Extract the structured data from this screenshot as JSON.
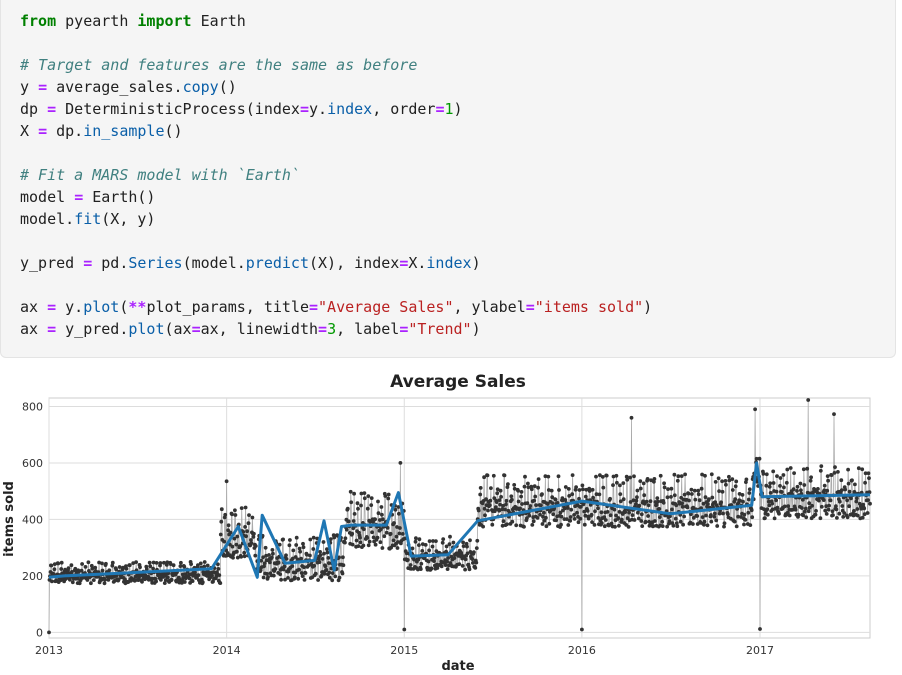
{
  "code_cell": {
    "lines": [
      [
        [
          "kw",
          "from"
        ],
        [
          "t",
          " pyearth "
        ],
        [
          "kw",
          "import"
        ],
        [
          "t",
          " Earth"
        ]
      ],
      [],
      [
        [
          "cm",
          "# Target and features are the same as before"
        ]
      ],
      [
        [
          "t",
          "y "
        ],
        [
          "op",
          "="
        ],
        [
          "t",
          " average_sales."
        ],
        [
          "fn",
          "copy"
        ],
        [
          "t",
          "()"
        ]
      ],
      [
        [
          "t",
          "dp "
        ],
        [
          "op",
          "="
        ],
        [
          "t",
          " DeterministicProcess(index"
        ],
        [
          "op",
          "="
        ],
        [
          "t",
          "y."
        ],
        [
          "fn",
          "index"
        ],
        [
          "t",
          ", order"
        ],
        [
          "op",
          "="
        ],
        [
          "num",
          "1"
        ],
        [
          "t",
          ")"
        ]
      ],
      [
        [
          "t",
          "X "
        ],
        [
          "op",
          "="
        ],
        [
          "t",
          " dp."
        ],
        [
          "fn",
          "in_sample"
        ],
        [
          "t",
          "()"
        ]
      ],
      [],
      [
        [
          "cm",
          "# Fit a MARS model with `Earth`"
        ]
      ],
      [
        [
          "t",
          "model "
        ],
        [
          "op",
          "="
        ],
        [
          "t",
          " Earth()"
        ]
      ],
      [
        [
          "t",
          "model."
        ],
        [
          "fn",
          "fit"
        ],
        [
          "t",
          "(X, y)"
        ]
      ],
      [],
      [
        [
          "t",
          "y_pred "
        ],
        [
          "op",
          "="
        ],
        [
          "t",
          " pd."
        ],
        [
          "fn",
          "Series"
        ],
        [
          "t",
          "(model."
        ],
        [
          "fn",
          "predict"
        ],
        [
          "t",
          "(X), index"
        ],
        [
          "op",
          "="
        ],
        [
          "t",
          "X."
        ],
        [
          "fn",
          "index"
        ],
        [
          "t",
          ")"
        ]
      ],
      [],
      [
        [
          "t",
          "ax "
        ],
        [
          "op",
          "="
        ],
        [
          "t",
          " y."
        ],
        [
          "fn",
          "plot"
        ],
        [
          "t",
          "("
        ],
        [
          "op",
          "**"
        ],
        [
          "t",
          "plot_params, title"
        ],
        [
          "op",
          "="
        ],
        [
          "str",
          "\"Average Sales\""
        ],
        [
          "t",
          ", ylabel"
        ],
        [
          "op",
          "="
        ],
        [
          "str",
          "\"items sold\""
        ],
        [
          "t",
          ")"
        ]
      ],
      [
        [
          "t",
          "ax "
        ],
        [
          "op",
          "="
        ],
        [
          "t",
          " y_pred."
        ],
        [
          "fn",
          "plot"
        ],
        [
          "t",
          "(ax"
        ],
        [
          "op",
          "="
        ],
        [
          "t",
          "ax, linewidth"
        ],
        [
          "op",
          "="
        ],
        [
          "num",
          "3"
        ],
        [
          "t",
          ", label"
        ],
        [
          "op",
          "="
        ],
        [
          "str",
          "\"Trend\""
        ],
        [
          "t",
          ")"
        ]
      ]
    ]
  },
  "chart_data": {
    "type": "line",
    "title": "Average Sales",
    "xlabel": "date",
    "ylabel": "items sold",
    "xlim": [
      "2013-01-01",
      "2017-08-15"
    ],
    "ylim": [
      -20,
      830
    ],
    "xticks": [
      "2013",
      "2014",
      "2015",
      "2016",
      "2017"
    ],
    "yticks": [
      0,
      200,
      400,
      600,
      800
    ],
    "grid": true,
    "legend": "none",
    "colors": {
      "observed": "#333333",
      "observed_line": "#aaaaaa",
      "trend": "#1f77b4"
    },
    "series": [
      {
        "key": "observed",
        "style": "line-with-points",
        "regime_levels": [
          {
            "from": "2013-01-01",
            "to": "2013-12-20",
            "mean": 205,
            "amp": 45
          },
          {
            "from": "2013-12-20",
            "to": "2014-03-01",
            "mean": 340,
            "amp": 110
          },
          {
            "from": "2014-03-01",
            "to": "2014-09-01",
            "mean": 250,
            "amp": 95
          },
          {
            "from": "2014-09-01",
            "to": "2014-12-31",
            "mean": 380,
            "amp": 120
          },
          {
            "from": "2015-01-01",
            "to": "2015-06-01",
            "mean": 270,
            "amp": 70
          },
          {
            "from": "2015-06-01",
            "to": "2016-12-20",
            "mean": 450,
            "amp": 110
          },
          {
            "from": "2016-12-20",
            "to": "2017-01-03",
            "mean": 560,
            "amp": 90
          },
          {
            "from": "2017-01-03",
            "to": "2017-08-15",
            "mean": 480,
            "amp": 110
          }
        ],
        "outliers": [
          [
            "2013-01-01",
            0
          ],
          [
            "2014-01-01",
            7
          ],
          [
            "2015-01-01",
            10
          ],
          [
            "2016-01-01",
            10
          ],
          [
            "2017-01-01",
            12
          ],
          [
            "2014-01-01",
            535
          ],
          [
            "2014-12-24",
            600
          ],
          [
            "2016-04-12",
            760
          ],
          [
            "2016-12-22",
            790
          ],
          [
            "2017-04-10",
            823
          ],
          [
            "2017-06-02",
            773
          ]
        ]
      },
      {
        "name": "Trend",
        "key": "trend",
        "x": [
          "2013-01-01",
          "2013-02-01",
          "2013-12-01",
          "2014-01-25",
          "2014-03-05",
          "2014-03-15",
          "2014-05-01",
          "2014-07-01",
          "2014-07-20",
          "2014-08-10",
          "2014-08-25",
          "2014-09-15",
          "2014-11-25",
          "2014-12-20",
          "2015-01-15",
          "2015-04-01",
          "2015-06-01",
          "2016-01-01",
          "2016-07-01",
          "2016-12-15",
          "2016-12-25",
          "2017-01-05",
          "2017-08-15"
        ],
        "y": [
          195,
          200,
          225,
          375,
          195,
          415,
          245,
          255,
          395,
          220,
          375,
          380,
          380,
          495,
          270,
          275,
          395,
          465,
          420,
          450,
          600,
          480,
          487
        ]
      }
    ]
  }
}
